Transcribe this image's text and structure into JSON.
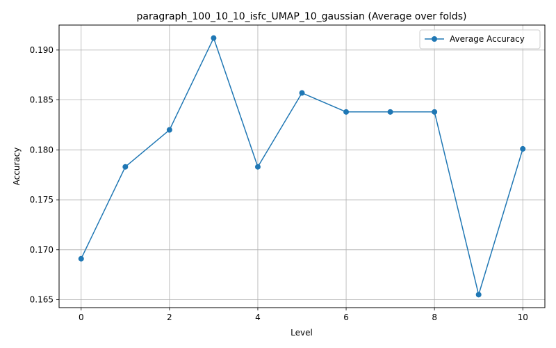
{
  "chart_data": {
    "type": "line",
    "title": "paragraph_100_10_10_isfc_UMAP_10_gaussian (Average over folds)",
    "xlabel": "Level",
    "ylabel": "Accuracy",
    "xlim": [
      -0.5,
      10.5
    ],
    "ylim": [
      0.1642,
      0.1925
    ],
    "x_ticks": [
      0,
      2,
      4,
      6,
      8,
      10
    ],
    "y_ticks": [
      0.165,
      0.17,
      0.175,
      0.18,
      0.185,
      0.19
    ],
    "y_tick_labels": [
      "0.165",
      "0.170",
      "0.175",
      "0.180",
      "0.185",
      "0.190"
    ],
    "grid": true,
    "legend_position": "top-right",
    "series": [
      {
        "name": "Average Accuracy",
        "color": "#1f77b4",
        "marker": "circle",
        "x": [
          0,
          1,
          2,
          3,
          4,
          5,
          6,
          7,
          8,
          9,
          10
        ],
        "y": [
          0.1691,
          0.1783,
          0.182,
          0.1912,
          0.1783,
          0.1857,
          0.1838,
          0.1838,
          0.1838,
          0.1655,
          0.1801
        ]
      }
    ]
  }
}
